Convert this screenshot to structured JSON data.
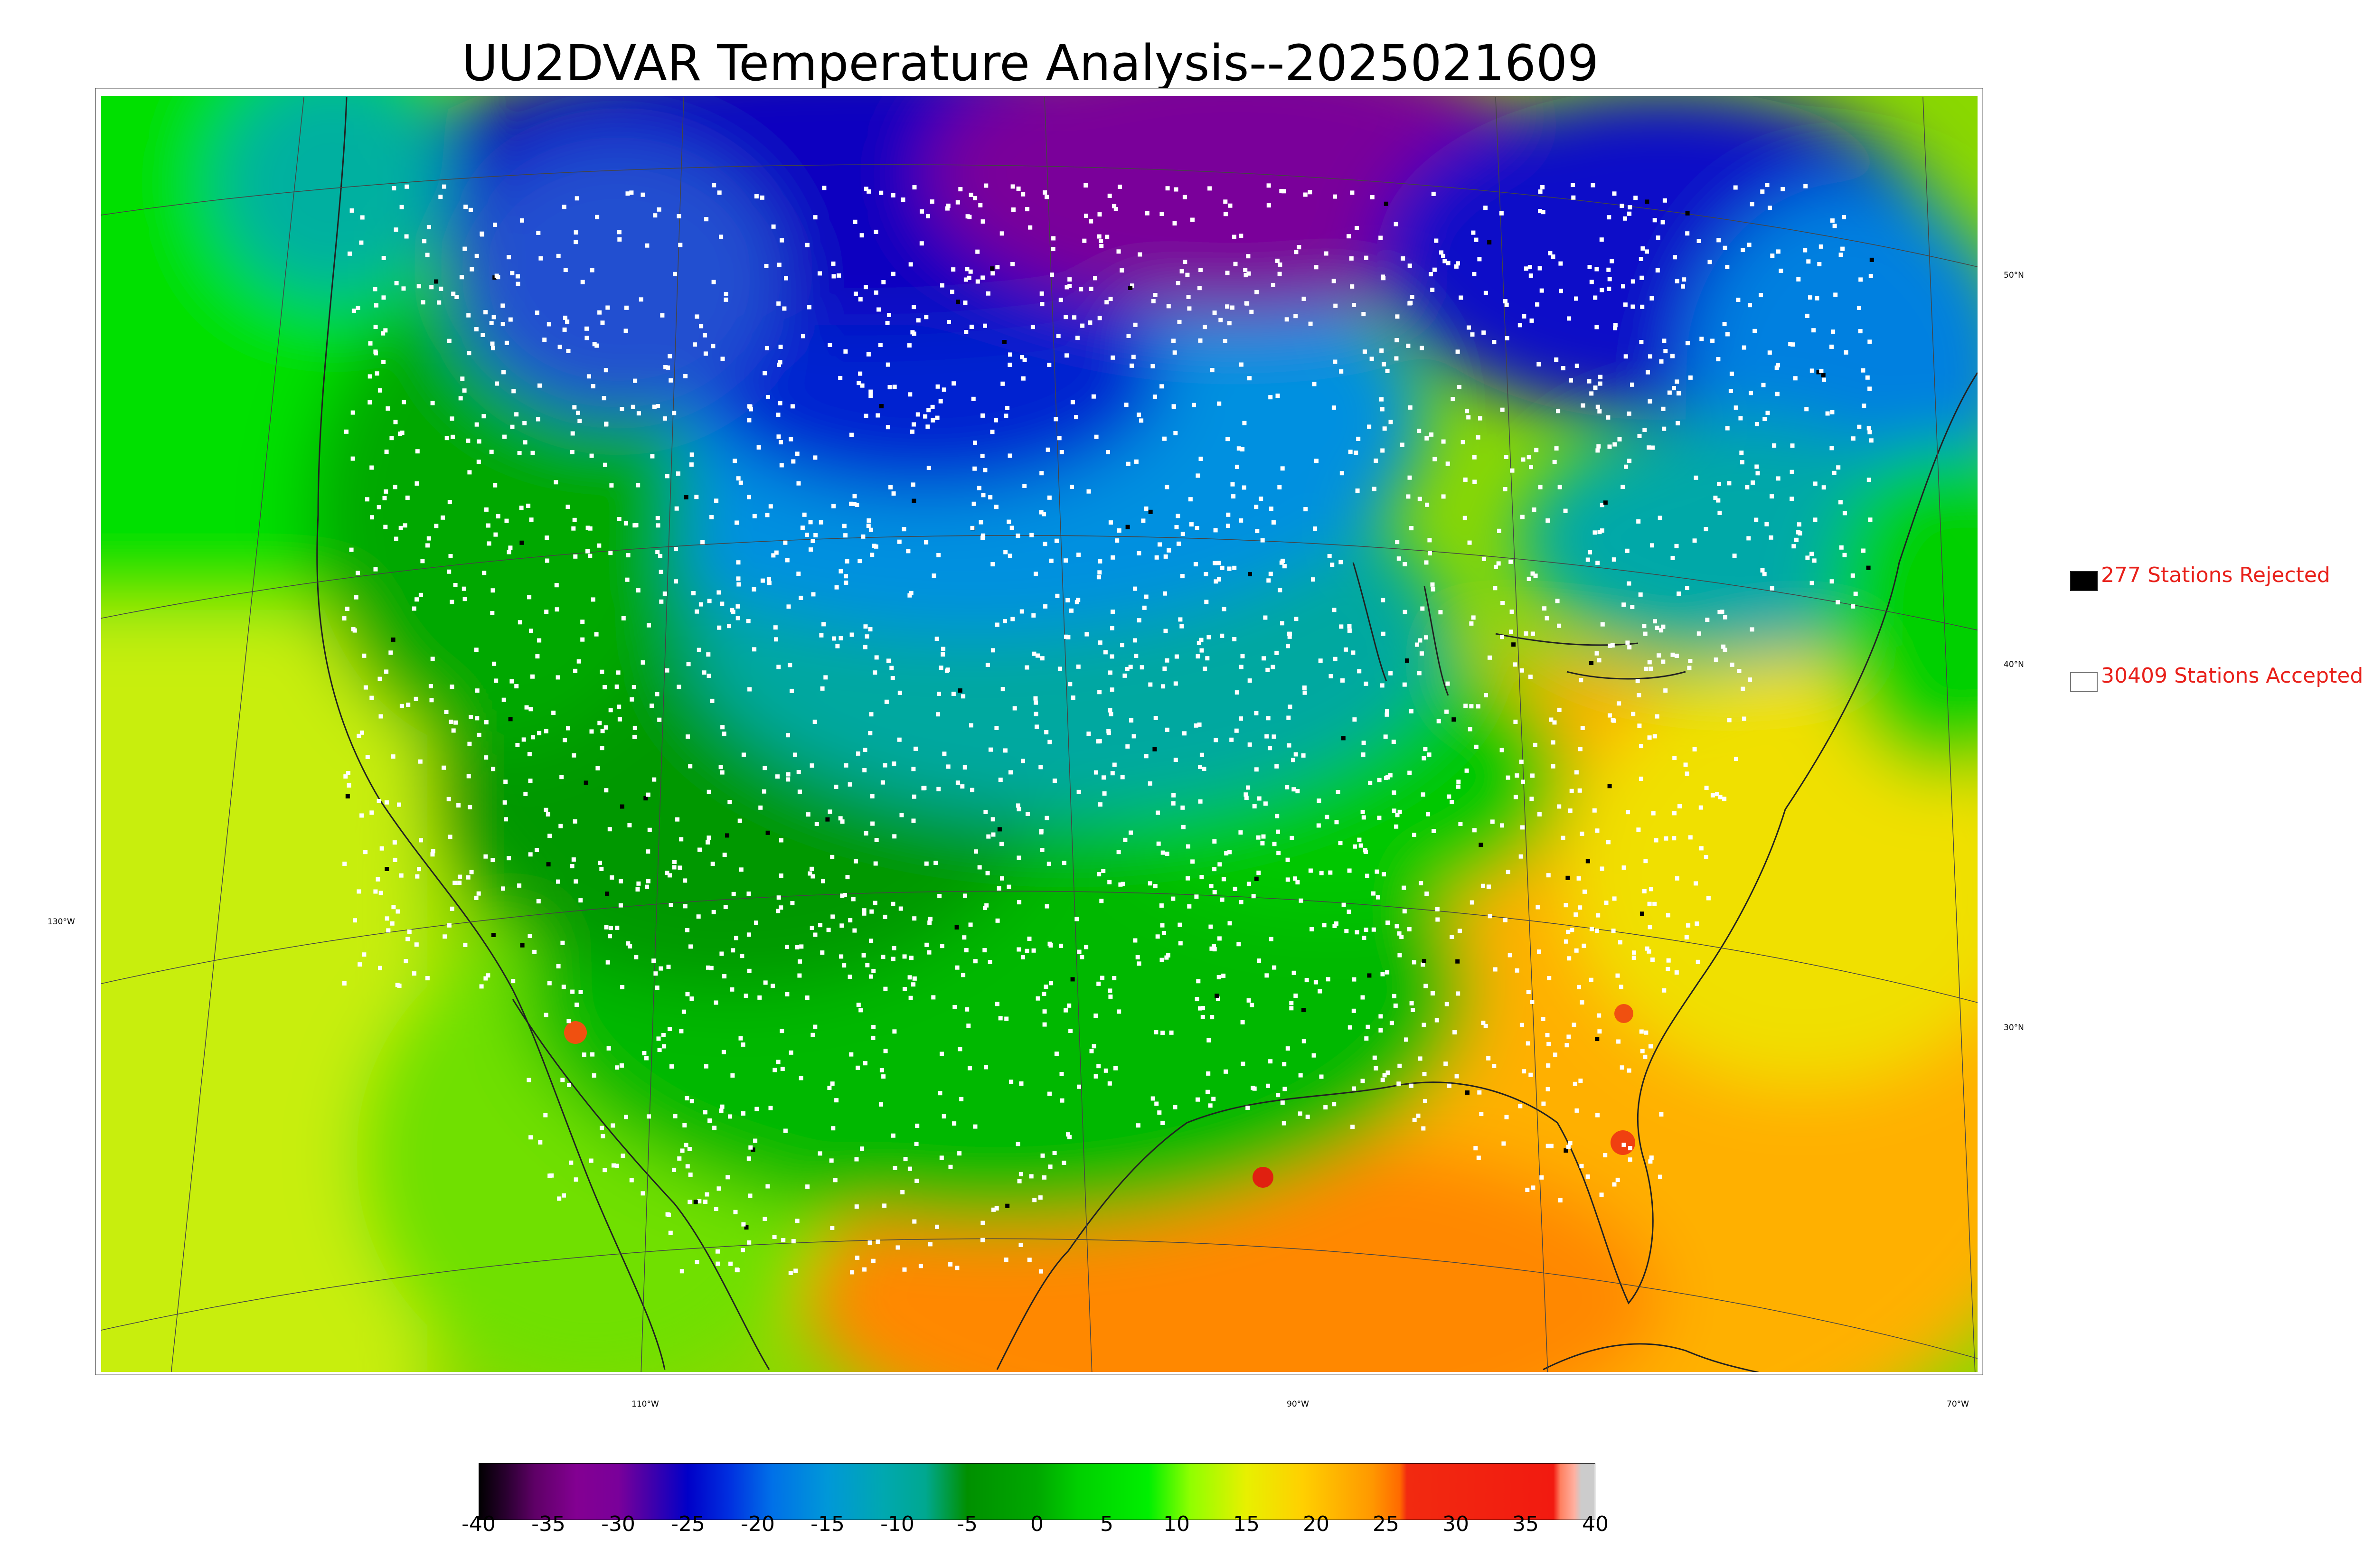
{
  "title": "UU2DVAR Temperature Analysis--2025021609",
  "graticule": {
    "lat_labels": [
      "50°N",
      "40°N",
      "30°N"
    ],
    "lon_labels": [
      "130°W",
      "110°W",
      "90°W",
      "70°W"
    ]
  },
  "legend": {
    "rejected": {
      "label": "277 Stations Rejected",
      "color": "#000000"
    },
    "accepted": {
      "label": "30409 Stations Accepted",
      "color": "#ffffff"
    }
  },
  "colorbar": {
    "ticks": [
      "-40",
      "-35",
      "-30",
      "-25",
      "-20",
      "-15",
      "-10",
      "-5",
      "0",
      "5",
      "10",
      "15",
      "20",
      "25",
      "30",
      "35",
      "40"
    ],
    "min": -40,
    "max": 40,
    "stops": [
      {
        "v": -40,
        "c": "#000000"
      },
      {
        "v": -38,
        "c": "#2a0030"
      },
      {
        "v": -36,
        "c": "#5e0066"
      },
      {
        "v": -33,
        "c": "#830092"
      },
      {
        "v": -30,
        "c": "#7a009a"
      },
      {
        "v": -28,
        "c": "#4a00a8"
      },
      {
        "v": -25,
        "c": "#0000c8"
      },
      {
        "v": -22,
        "c": "#0030e0"
      },
      {
        "v": -19,
        "c": "#0070e8"
      },
      {
        "v": -15,
        "c": "#0098d8"
      },
      {
        "v": -11,
        "c": "#00a8b0"
      },
      {
        "v": -8,
        "c": "#00a890"
      },
      {
        "v": -5,
        "c": "#009000"
      },
      {
        "v": 0,
        "c": "#00a800"
      },
      {
        "v": 3,
        "c": "#00d000"
      },
      {
        "v": 8,
        "c": "#00f000"
      },
      {
        "v": 11,
        "c": "#90ff00"
      },
      {
        "v": 15,
        "c": "#e8f000"
      },
      {
        "v": 19,
        "c": "#ffd000"
      },
      {
        "v": 24,
        "c": "#ff9800"
      },
      {
        "v": 26,
        "c": "#ff6a00"
      },
      {
        "v": 26.5,
        "c": "#f22a10"
      },
      {
        "v": 37,
        "c": "#f21a10"
      },
      {
        "v": 37.5,
        "c": "#ff8060"
      },
      {
        "v": 38.5,
        "c": "#ffb0a0"
      },
      {
        "v": 39,
        "c": "#cccccc"
      },
      {
        "v": 40,
        "c": "#cccccc"
      }
    ]
  },
  "chart_data": {
    "type": "heatmap",
    "title": "UU2DVAR Temperature Analysis--2025021609",
    "colorbar_range": [
      -40,
      40
    ],
    "stations_rejected": 277,
    "stations_accepted": 30409
  }
}
